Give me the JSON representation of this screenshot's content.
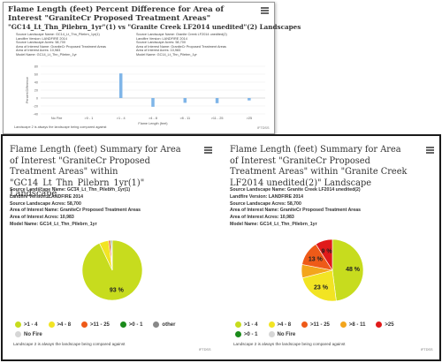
{
  "colors": {
    "c1_4": "#c7dc1e",
    "c4_8": "#f2e423",
    "c11_25": "#ee5a18",
    "c0_1": "#1a8a1a",
    "other": "#888888",
    "nofire": "#d6d6d6",
    "c8_11": "#f3a51c",
    "c25": "#e01a1a",
    "bar": "#7fb5e8"
  },
  "top_panel": {
    "title": "Flame Length (feet) Percent Difference for Area of Interest \"GraniteCr Proposed Treatment Areas\"",
    "subtitle": "\"GC14_Lt_Thn_Pilebrn_1yr\"(1) vs \"Granite Creek LF2014 unedited\"(2) Landscapes",
    "meta_left": [
      "Source Landscape Name: GC14_Lt_Thn_Pilebrn_1yr(1)",
      "Landfire Version: LANDFIRE 2014",
      "Source Landscape Acres: 58,700",
      "Area of Interest Name: GraniteCr Proposed Treatment Areas",
      "Area of Interest Acres: 10,983",
      "Model Name: GC14_Lt_Thn_Pilebrn_1yr"
    ],
    "meta_right": [
      "Source Landscape Name: Granite Creek LF2014 unedited(2)",
      "Landfire Version: LANDFIRE 2014",
      "Source Landscape Acres: 58,700",
      "Area of Interest Name: GraniteCr Proposed Treatment Areas",
      "Area of Interest Acres: 10,983",
      "Model Name: GC14_Lt_Thn_Pilebrn_1yr"
    ],
    "footnote": "Landscape 2 is always the landscape being compared against",
    "credit": "IFTDSS"
  },
  "left_pie": {
    "title": "Flame Length (feet) Summary for Area of Interest \"GraniteCr Proposed Treatment Areas\" within \"GC14_Lt_Thn_Pilebrn_1yr(1)\" Landscape",
    "meta": [
      "Source Landscape Name: GC14_Lt_Thn_Pilebrn_1yr(1)",
      "Landfire Version: LANDFIRE 2014",
      "Source Landscape Acres: 58,700",
      "Area of Interest Name: GraniteCr Proposed Treatment Areas",
      "Area of Interest Acres: 10,983",
      "Model Name: GC14_Lt_Thn_Pilebrn_1yr"
    ],
    "legend": [
      [
        {
          "label": ">1 - 4",
          "color": "#c7dc1e"
        },
        {
          "label": ">4 - 8",
          "color": "#f2e423"
        },
        {
          "label": ">11 - 25",
          "color": "#ee5a18"
        },
        {
          "label": ">0 - 1",
          "color": "#1a8a1a"
        },
        {
          "label": "other",
          "color": "#888888"
        }
      ],
      [
        {
          "label": "No Fire",
          "color": "#d6d6d6"
        }
      ]
    ],
    "footnote": "Landscape 2 is always the landscape being compared against",
    "credit": "IFTDSS"
  },
  "right_pie": {
    "title": "Flame Length (feet) Summary for Area of Interest \"GraniteCr Proposed Treatment Areas\" within \"Granite Creek LF2014 unedited(2)\" Landscape",
    "meta": [
      "Source Landscape Name: Granite Creek LF2014 unedited(2)",
      "Landfire Version: LANDFIRE 2014",
      "Source Landscape Acres: 58,700",
      "Area of Interest Name: GraniteCr Proposed Treatment Areas",
      "Area of Interest Acres: 10,983",
      "Model Name: GC14_Lt_Thn_Pilebrn_1yr"
    ],
    "legend": [
      [
        {
          "label": ">1 - 4",
          "color": "#c7dc1e"
        },
        {
          "label": ">4 - 8",
          "color": "#f2e423"
        },
        {
          "label": ">11 - 25",
          "color": "#ee5a18"
        },
        {
          "label": ">8 - 11",
          "color": "#f3a51c"
        },
        {
          "label": ">25",
          "color": "#e01a1a"
        }
      ],
      [
        {
          "label": ">0 - 1",
          "color": "#1a8a1a"
        },
        {
          "label": "No Fire",
          "color": "#d6d6d6"
        }
      ]
    ],
    "footnote": "Landscape 2 is always the landscape being compared against",
    "credit": "IFTDSS"
  },
  "chart_data": [
    {
      "type": "bar",
      "categories": [
        "No Fire",
        ">0 - 1",
        ">1 - 4",
        ">4 - 8",
        ">8 - 11",
        ">11 - 25",
        ">25"
      ],
      "values": [
        0,
        0,
        62,
        -22,
        -12,
        -13,
        -6
      ],
      "ylabel": "Percent Difference",
      "xlabel": "Flame Length (feet)",
      "ylim": [
        -40,
        80
      ],
      "yticks": [
        -40,
        -20,
        0,
        20,
        40,
        60,
        80
      ],
      "grid": true
    },
    {
      "type": "pie",
      "slices": [
        {
          "label": ">1 - 4",
          "value": 93,
          "color": "#c7dc1e",
          "show_label": true
        },
        {
          "label": ">4 - 8",
          "value": 5,
          "color": "#f2e423",
          "show_label": false
        },
        {
          "label": ">11 - 25",
          "value": 1,
          "color": "#ee5a18",
          "show_label": false
        },
        {
          "label": ">0 - 1",
          "value": 0.5,
          "color": "#1a8a1a",
          "show_label": false
        },
        {
          "label": "other",
          "value": 0.5,
          "color": "#888888",
          "show_label": false
        }
      ]
    },
    {
      "type": "pie",
      "slices": [
        {
          "label": ">1 - 4",
          "value": 48,
          "color": "#c7dc1e",
          "show_label": true
        },
        {
          "label": ">4 - 8",
          "value": 23,
          "color": "#f2e423",
          "show_label": true
        },
        {
          "label": ">8 - 11",
          "value": 7,
          "color": "#f3a51c",
          "show_label": false
        },
        {
          "label": ">11 - 25",
          "value": 13,
          "color": "#ee5a18",
          "show_label": true
        },
        {
          "label": ">25",
          "value": 9,
          "color": "#e01a1a",
          "show_label": true
        }
      ]
    }
  ]
}
